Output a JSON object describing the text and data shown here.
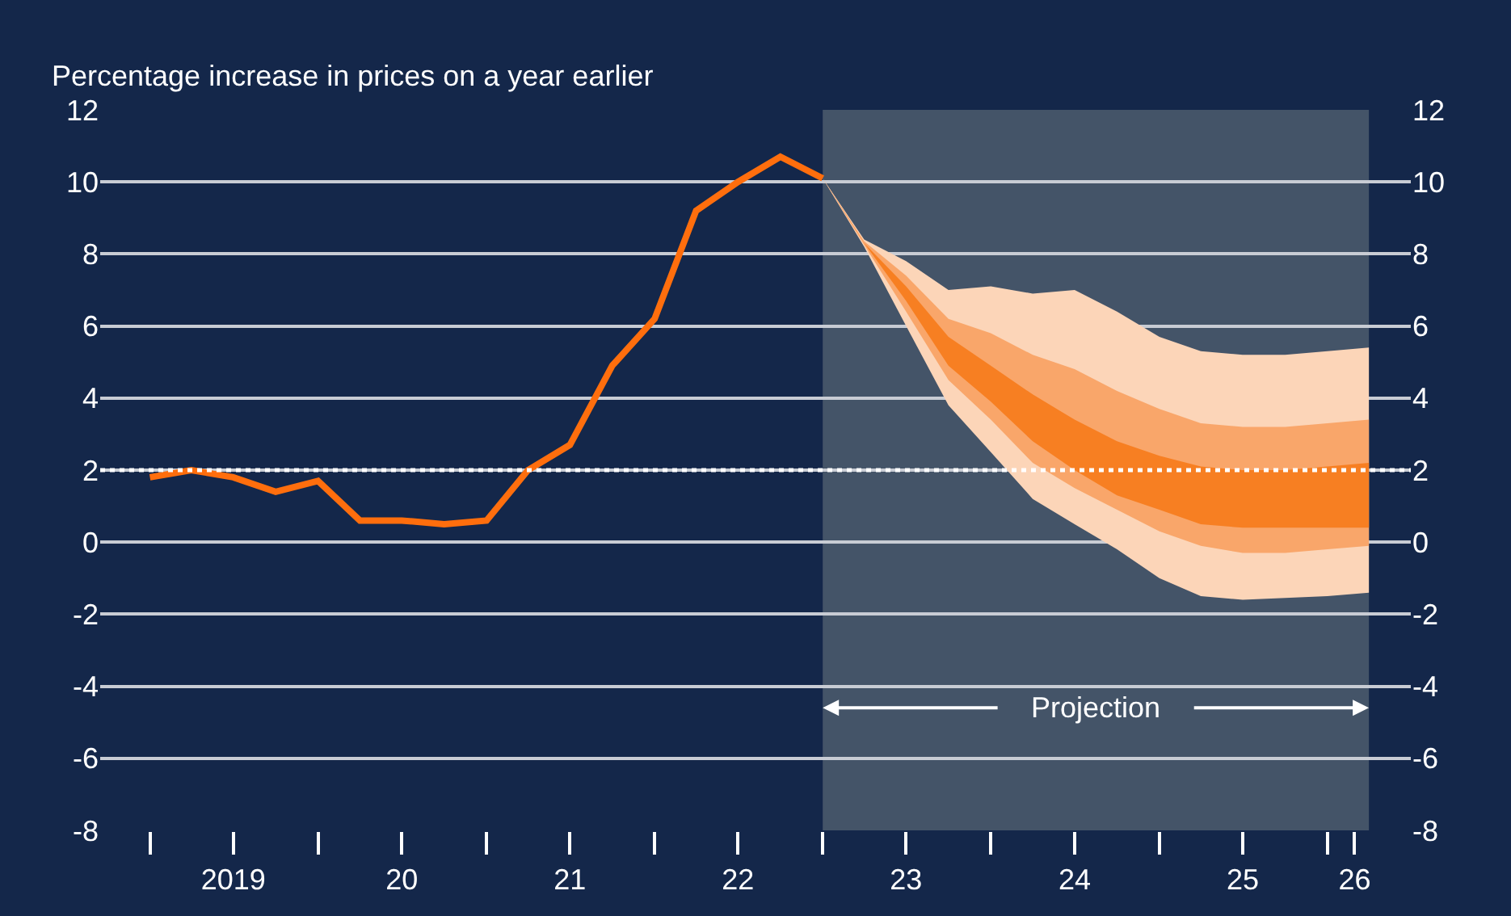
{
  "chart_data": {
    "type": "line",
    "ylabel": "Percentage increase in prices on a year earlier",
    "xlim": [
      "2018-09-15",
      "2026-07-01"
    ],
    "xticks": [
      {
        "value": "2019-01-01",
        "label": null
      },
      {
        "value": "2019-07-01",
        "label": "2019"
      },
      {
        "value": "2020-01-01",
        "label": null
      },
      {
        "value": "2020-07-01",
        "label": "20"
      },
      {
        "value": "2021-01-01",
        "label": null
      },
      {
        "value": "2021-07-01",
        "label": "21"
      },
      {
        "value": "2022-01-01",
        "label": null
      },
      {
        "value": "2022-07-01",
        "label": "22"
      },
      {
        "value": "2023-01-01",
        "label": null
      },
      {
        "value": "2023-07-01",
        "label": "23"
      },
      {
        "value": "2024-01-01",
        "label": null
      },
      {
        "value": "2024-07-01",
        "label": "24"
      },
      {
        "value": "2025-01-01",
        "label": null
      },
      {
        "value": "2025-07-01",
        "label": "25"
      },
      {
        "value": "2026-01-01",
        "label": null
      },
      {
        "value": "2026-03-01",
        "label": "26"
      }
    ],
    "ylim": [
      -8,
      12
    ],
    "yticks": [
      -8,
      -6,
      -4,
      -2,
      0,
      2,
      4,
      6,
      8,
      10,
      12
    ],
    "y2lim": [
      -8,
      12
    ],
    "y2ticks": [
      -8,
      -6,
      -4,
      -2,
      0,
      2,
      4,
      6,
      8,
      10,
      12
    ],
    "grid": "y",
    "series": [
      {
        "color": "#fcd5b8",
        "x": [
          "2023-01-01",
          "2023-04-01",
          "2023-07-01",
          "2023-10-01",
          "2024-01-01",
          "2024-04-01",
          "2024-07-01",
          "2024-10-01",
          "2025-01-01",
          "2025-04-01",
          "2025-07-01",
          "2025-10-01",
          "2026-01-01",
          "2026-04-01"
        ],
        "values": [
          null,
          null,
          null,
          null,
          null,
          null,
          null,
          null,
          null,
          null,
          null,
          null,
          null,
          null
        ],
        "lower": [
          10.1,
          8.2,
          6.0,
          3.8,
          2.5,
          1.2,
          0.5,
          -0.2,
          -1.0,
          -1.5,
          -1.6,
          -1.55,
          -1.5,
          -1.4
        ],
        "upper": [
          10.1,
          8.4,
          7.8,
          7.0,
          7.1,
          6.9,
          7.0,
          6.4,
          5.7,
          5.3,
          5.2,
          5.2,
          5.3,
          5.4
        ]
      },
      {
        "color": "#f9a66a",
        "x": [
          "2023-01-01",
          "2023-04-01",
          "2023-07-01",
          "2023-10-01",
          "2024-01-01",
          "2024-04-01",
          "2024-07-01",
          "2024-10-01",
          "2025-01-01",
          "2025-04-01",
          "2025-07-01",
          "2025-10-01",
          "2026-01-01",
          "2026-04-01"
        ],
        "values": [
          null,
          null,
          null,
          null,
          null,
          null,
          null,
          null,
          null,
          null,
          null,
          null,
          null,
          null
        ],
        "lower": [
          10.1,
          8.25,
          6.4,
          4.5,
          3.4,
          2.2,
          1.5,
          0.9,
          0.3,
          -0.1,
          -0.3,
          -0.3,
          -0.2,
          -0.1
        ],
        "upper": [
          10.1,
          8.35,
          7.4,
          6.2,
          5.8,
          5.2,
          4.8,
          4.2,
          3.7,
          3.3,
          3.2,
          3.2,
          3.3,
          3.4
        ]
      },
      {
        "color": "#f77f22",
        "x": [
          "2023-01-01",
          "2023-04-01",
          "2023-07-01",
          "2023-10-01",
          "2024-01-01",
          "2024-04-01",
          "2024-07-01",
          "2024-10-01",
          "2025-01-01",
          "2025-04-01",
          "2025-07-01",
          "2025-10-01",
          "2026-01-01",
          "2026-04-01"
        ],
        "values": [
          null,
          null,
          null,
          null,
          null,
          null,
          null,
          null,
          null,
          null,
          null,
          null,
          null,
          null
        ],
        "lower": [
          10.1,
          8.3,
          6.7,
          4.9,
          3.9,
          2.8,
          2.0,
          1.3,
          0.9,
          0.5,
          0.4,
          0.4,
          0.4,
          0.4
        ],
        "upper": [
          10.1,
          8.3,
          7.1,
          5.7,
          4.9,
          4.1,
          3.4,
          2.8,
          2.4,
          2.1,
          2.0,
          2.0,
          2.1,
          2.2
        ]
      },
      {
        "color": "#ff6e0d",
        "x": [
          "2019-01-01",
          "2019-04-01",
          "2019-07-01",
          "2019-10-01",
          "2020-01-01",
          "2020-04-01",
          "2020-07-01",
          "2020-10-01",
          "2021-01-01",
          "2021-04-01",
          "2021-07-01",
          "2021-10-01",
          "2022-01-01",
          "2022-04-01",
          "2022-07-01",
          "2022-10-01",
          "2023-01-01"
        ],
        "values": [
          1.8,
          2.0,
          1.8,
          1.4,
          1.7,
          0.6,
          0.6,
          0.5,
          0.6,
          2.0,
          2.7,
          4.9,
          6.2,
          9.2,
          10.0,
          10.7,
          10.1
        ]
      }
    ],
    "ref_lines": [
      {
        "axis": "y",
        "value": 2,
        "color": "#ffffff",
        "line_style": "dotted"
      }
    ],
    "bands": [
      {
        "axis": "x",
        "from": "2023-01-01",
        "to": "2026-04-01",
        "label": "Projection",
        "color": "#445468"
      }
    ]
  }
}
